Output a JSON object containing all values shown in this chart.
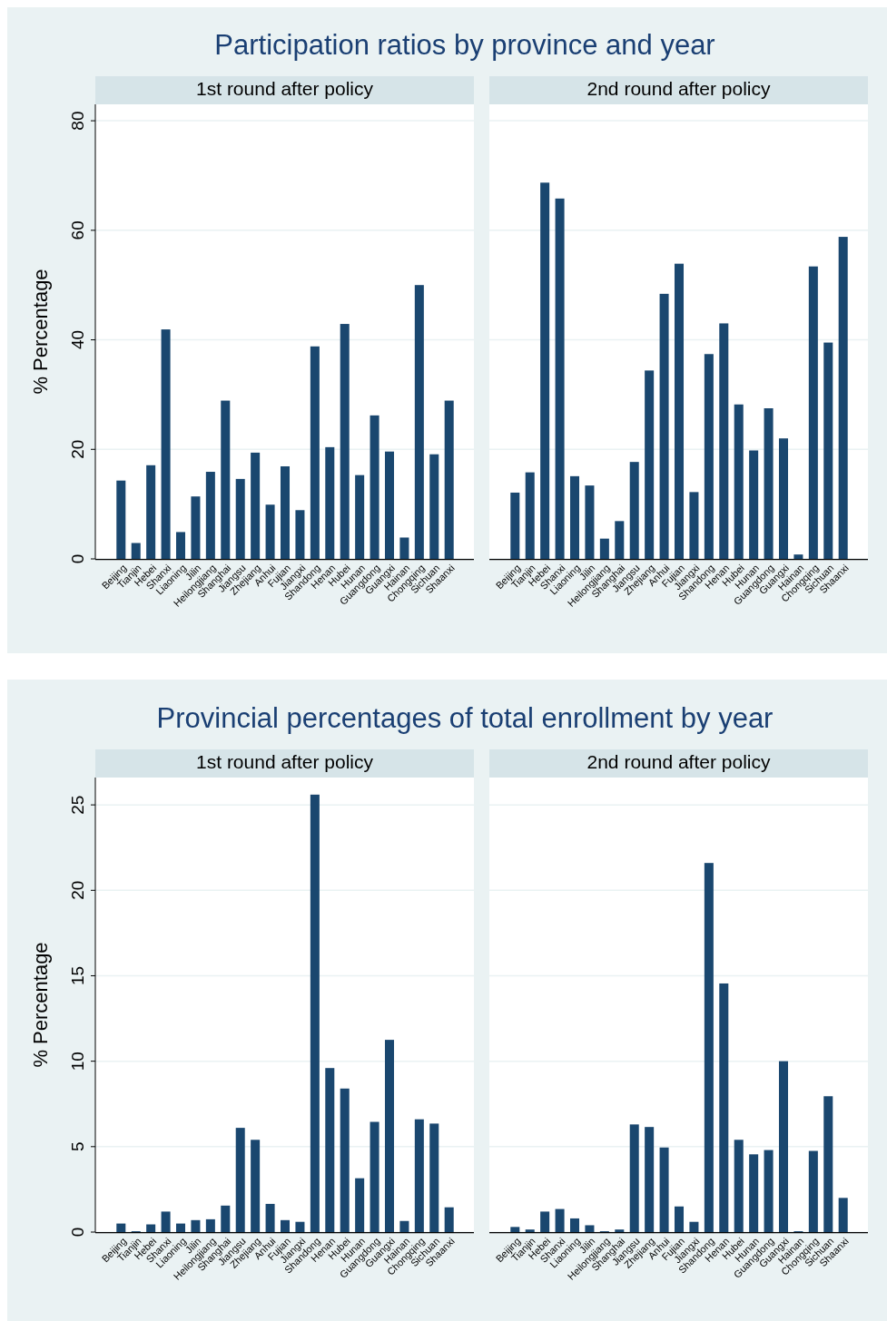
{
  "chart_data": [
    {
      "type": "bar",
      "title": "Participation ratios by province and year",
      "subtitle": "1st round after policy",
      "ylabel": "% Percentage",
      "categories": [
        "Beijing",
        "Tianjin",
        "Hebei",
        "Shanxi",
        "Liaoning",
        "Jilin",
        "Heilongjiang",
        "Shanghai",
        "Jiangsu",
        "Zhejiang",
        "Anhui",
        "Fujian",
        "Jiangxi",
        "Shandong",
        "Henan",
        "Hubei",
        "Hunan",
        "Guangdong",
        "Guangxi",
        "Hainan",
        "Chongqing",
        "Sichuan",
        "Shaanxi"
      ],
      "values": [
        14.3,
        2.9,
        17.1,
        41.9,
        4.9,
        11.4,
        15.9,
        28.9,
        14.6,
        19.4,
        9.9,
        16.9,
        8.9,
        38.8,
        20.4,
        42.9,
        15.3,
        26.2,
        19.6,
        3.9,
        50.0,
        19.1,
        28.9
      ],
      "color": "#1a476f",
      "ylim": [
        0,
        83
      ],
      "yticks": [
        0,
        20,
        40,
        60,
        80
      ],
      "grid": "y"
    },
    {
      "type": "bar",
      "subtitle": "2nd round after policy",
      "categories": [
        "Beijing",
        "Tianjin",
        "Hebei",
        "Shanxi",
        "Liaoning",
        "Jilin",
        "Heilongjiang",
        "Shanghai",
        "Jiangsu",
        "Zhejiang",
        "Anhui",
        "Fujian",
        "Jiangxi",
        "Shandong",
        "Henan",
        "Hubei",
        "Hunan",
        "Guangdong",
        "Guangxi",
        "Hainan",
        "Chongqing",
        "Sichuan",
        "Shaanxi"
      ],
      "values": [
        12.1,
        15.8,
        68.7,
        65.8,
        15.1,
        13.4,
        3.7,
        6.9,
        17.7,
        34.4,
        48.4,
        53.9,
        12.2,
        37.4,
        43.0,
        28.2,
        19.8,
        27.5,
        22.0,
        0.8,
        53.4,
        39.5,
        58.8
      ],
      "color": "#1a476f",
      "ylim": [
        0,
        83
      ],
      "yticks": [
        0,
        20,
        40,
        60,
        80
      ],
      "grid": "y",
      "tick_labels": "x"
    },
    {
      "type": "bar",
      "title": "Provincial percentages of total enrollment by year",
      "subtitle": "1st round after policy",
      "ylabel": "% Percentage",
      "categories": [
        "Beijing",
        "Tianjin",
        "Hebei",
        "Shanxi",
        "Liaoning",
        "Jilin",
        "Heilongjiang",
        "Shanghai",
        "Jiangsu",
        "Zhejiang",
        "Anhui",
        "Fujian",
        "Jiangxi",
        "Shandong",
        "Henan",
        "Hubei",
        "Hunan",
        "Guangdong",
        "Guangxi",
        "Hainan",
        "Chongqing",
        "Sichuan",
        "Shaanxi"
      ],
      "values": [
        0.5,
        0.05,
        0.45,
        1.2,
        0.5,
        0.7,
        0.75,
        1.55,
        6.1,
        5.4,
        1.65,
        0.7,
        0.6,
        25.6,
        9.6,
        8.4,
        3.15,
        6.45,
        11.25,
        0.65,
        6.6,
        6.35,
        1.45
      ],
      "color": "#1a476f",
      "ylim": [
        0,
        26.6
      ],
      "yticks": [
        0,
        5,
        10,
        15,
        20,
        25
      ],
      "grid": "y"
    },
    {
      "type": "bar",
      "subtitle": "2nd round after policy",
      "categories": [
        "Beijing",
        "Tianjin",
        "Hebei",
        "Shanxi",
        "Liaoning",
        "Jilin",
        "Heilongjiang",
        "Shanghai",
        "Jiangsu",
        "Zhejiang",
        "Anhui",
        "Fujian",
        "Jiangxi",
        "Shandong",
        "Henan",
        "Hubei",
        "Hunan",
        "Guangdong",
        "Guangxi",
        "Hainan",
        "Chongqing",
        "Sichuan",
        "Shaanxi"
      ],
      "values": [
        0.3,
        0.15,
        1.2,
        1.35,
        0.8,
        0.4,
        0.05,
        0.15,
        6.3,
        6.15,
        4.95,
        1.5,
        0.6,
        21.6,
        14.55,
        5.4,
        4.55,
        4.8,
        10.0,
        0.05,
        4.75,
        7.95,
        2.0
      ],
      "color": "#1a476f",
      "ylim": [
        0,
        26.6
      ],
      "yticks": [
        0,
        5,
        10,
        15,
        20,
        25
      ],
      "grid": "y",
      "tick_labels": "x"
    }
  ]
}
